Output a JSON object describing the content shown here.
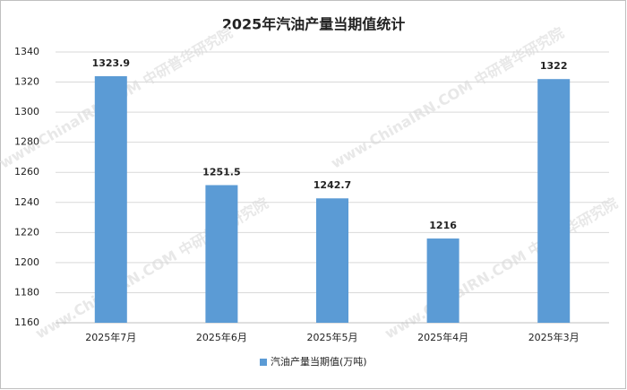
{
  "chart_data": {
    "type": "bar",
    "title": "2025年汽油产量当期值统计",
    "categories": [
      "2025年7月",
      "2025年6月",
      "2025年5月",
      "2025年4月",
      "2025年3月"
    ],
    "series": [
      {
        "name": "汽油产量当期值(万吨)",
        "color": "#5b9bd5",
        "values": [
          1323.9,
          1251.5,
          1242.7,
          1216,
          1322
        ]
      }
    ],
    "ylim": [
      1160,
      1340
    ],
    "yticks": [
      1160,
      1180,
      1200,
      1220,
      1240,
      1260,
      1280,
      1300,
      1320,
      1340
    ],
    "grid": true,
    "legend": "bottom",
    "watermark": "www.ChinaIRN.COM 中研普华研究院"
  }
}
